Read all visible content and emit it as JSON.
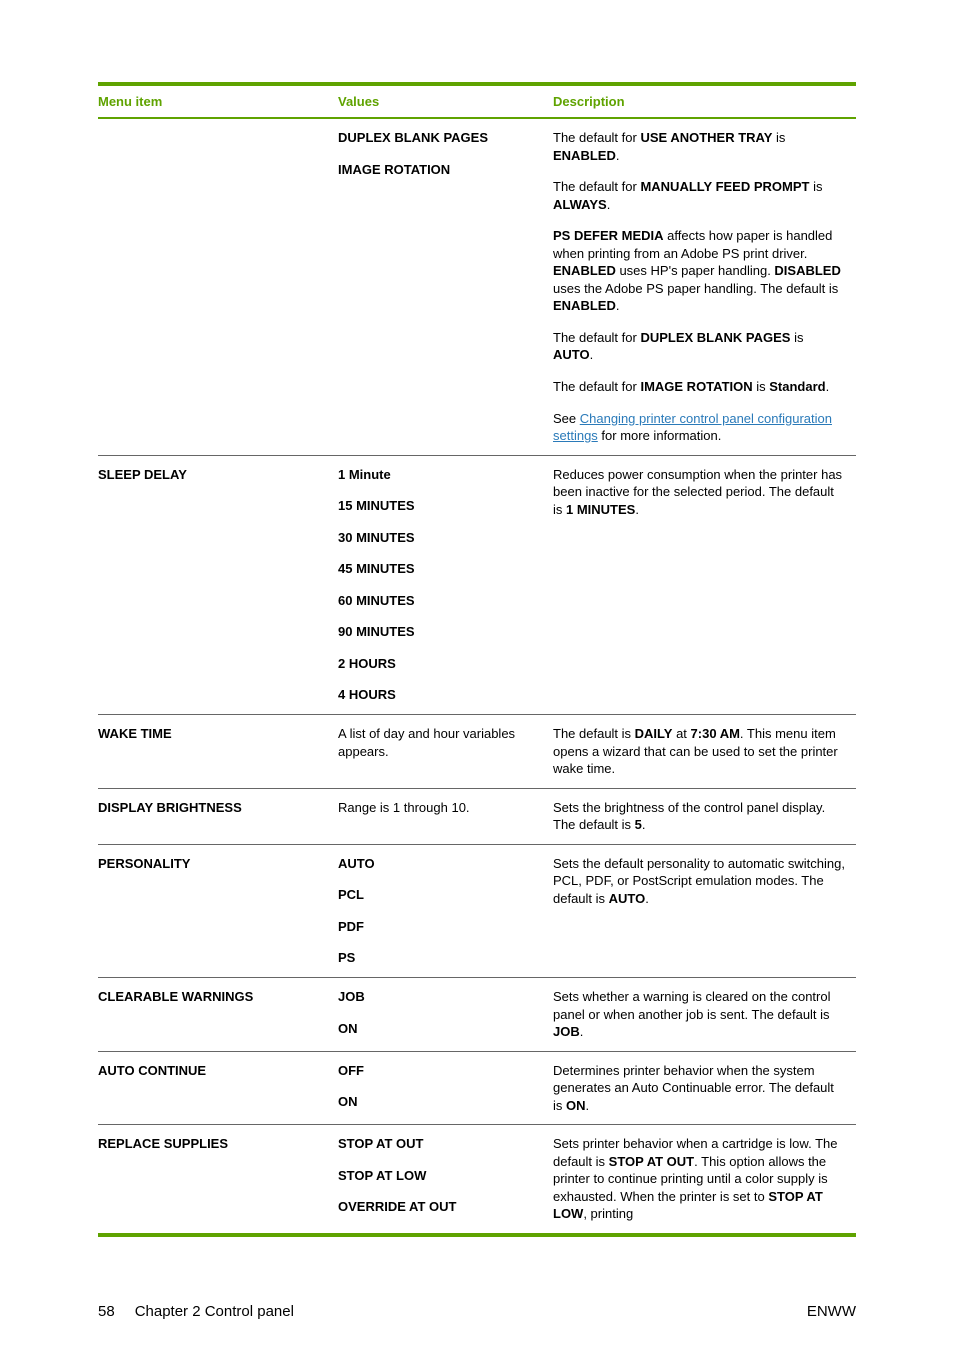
{
  "table": {
    "headers": [
      "Menu item",
      "Values",
      "Description"
    ],
    "rows": [
      {
        "menu": "",
        "valuesBold": true,
        "values": [
          "DUPLEX BLANK PAGES",
          "IMAGE ROTATION"
        ],
        "descriptionHtml": "<p>The default for <b>USE ANOTHER TRAY</b> is <b>ENABLED</b>.</p><p>The default for <b>MANUALLY FEED PROMPT</b> is <b>ALWAYS</b>.</p><p><b>PS DEFER MEDIA</b> affects how paper is handled when printing from an Adobe PS print driver. <b>ENABLED</b> uses HP's paper handling. <b>DISABLED</b> uses the Adobe PS paper handling. The default is <b>ENABLED</b>.</p><p>The default for <b>DUPLEX BLANK PAGES</b> is <b>AUTO</b>.</p><p>The default for <b>IMAGE ROTATION</b> is <b>Standard</b>.</p><p>See <a class='link' href='#'>Changing printer control panel configuration settings</a> for more information.</p>"
      },
      {
        "menu": "SLEEP DELAY",
        "valuesBold": true,
        "values": [
          "1 Minute",
          "15 MINUTES",
          "30 MINUTES",
          "45 MINUTES",
          "60 MINUTES",
          "90 MINUTES",
          "2 HOURS",
          "4 HOURS"
        ],
        "descriptionHtml": "<p>Reduces power consumption when the printer has been inactive for the selected period. The default is <b>1 MINUTES</b>.</p>"
      },
      {
        "menu": "WAKE TIME",
        "valuesBold": false,
        "values": [
          "A list of day and hour variables appears."
        ],
        "descriptionHtml": "<p>The default is <b>DAILY</b> at <b>7:30 AM</b>. This menu item opens a wizard that can be used to set the printer wake time.</p>"
      },
      {
        "menu": "DISPLAY BRIGHTNESS",
        "valuesBold": false,
        "values": [
          "Range is 1 through 10."
        ],
        "descriptionHtml": "<p>Sets the brightness of the control panel display. The default is <b>5</b>.</p>"
      },
      {
        "menu": "PERSONALITY",
        "valuesBold": true,
        "values": [
          "AUTO",
          "PCL",
          "PDF",
          "PS"
        ],
        "descriptionHtml": "<p>Sets the default personality to automatic switching, PCL, PDF, or PostScript emulation modes. The default is <b>AUTO</b>.</p>"
      },
      {
        "menu": "CLEARABLE WARNINGS",
        "valuesBold": true,
        "values": [
          "JOB",
          "ON"
        ],
        "descriptionHtml": "<p>Sets whether a warning is cleared on the control panel or when another job is sent. The default is <b>JOB</b>.</p>"
      },
      {
        "menu": "AUTO CONTINUE",
        "valuesBold": true,
        "values": [
          "OFF",
          "ON"
        ],
        "descriptionHtml": "<p>Determines printer behavior when the system generates an Auto Continuable error. The default is <b>ON</b>.</p>"
      },
      {
        "menu": "REPLACE SUPPLIES",
        "valuesBold": true,
        "values": [
          "STOP AT OUT",
          "STOP AT LOW",
          "OVERRIDE AT OUT"
        ],
        "descriptionHtml": "<p>Sets printer behavior when a cartridge is low. The default is <b>STOP AT OUT</b>. This option allows the printer to continue printing until a color supply is exhausted. When the printer is set to <b>STOP AT LOW</b>, printing</p>"
      }
    ]
  },
  "footer": {
    "pageNum": "58",
    "chapter": "Chapter 2   Control panel",
    "right": "ENWW"
  }
}
